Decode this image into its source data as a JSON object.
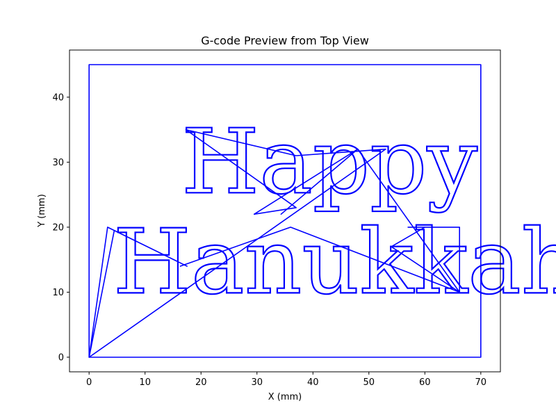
{
  "chart_data": {
    "type": "line",
    "title": "G-code Preview from Top View",
    "xlabel": "X (mm)",
    "ylabel": "Y (mm)",
    "xlim": [
      -3.5,
      73.5
    ],
    "ylim": [
      -2.25,
      47.25
    ],
    "xticks": [
      0,
      10,
      20,
      30,
      40,
      50,
      60,
      70
    ],
    "yticks": [
      0,
      10,
      20,
      30,
      40
    ],
    "grid": false,
    "legend": "none",
    "series_color": "#0000ff",
    "series": [
      {
        "kind": "border",
        "x": [
          0,
          70,
          70,
          0,
          0
        ],
        "y": [
          0,
          0,
          45,
          45,
          0
        ]
      },
      {
        "kind": "travel-moves",
        "x": [
          0,
          3.3,
          17.5,
          4.5,
          0,
          53,
          37,
          17.3,
          37,
          29.5,
          48,
          34.3,
          48,
          66.2,
          54,
          60,
          57,
          66.2,
          66.2,
          36,
          16.3
        ],
        "y": [
          0,
          20,
          14,
          19.5,
          0,
          32,
          31,
          35,
          23,
          22,
          32,
          22,
          32,
          10,
          17,
          20,
          20,
          20,
          10,
          20,
          14
        ]
      }
    ],
    "engraved_text": [
      {
        "text": "Happy",
        "baseline_x": 16.5,
        "baseline_y": 25.3,
        "height_mm": 11
      },
      {
        "text": "Hanukkah!",
        "baseline_x": 4.3,
        "baseline_y": 9.9,
        "height_mm": 11
      }
    ]
  }
}
